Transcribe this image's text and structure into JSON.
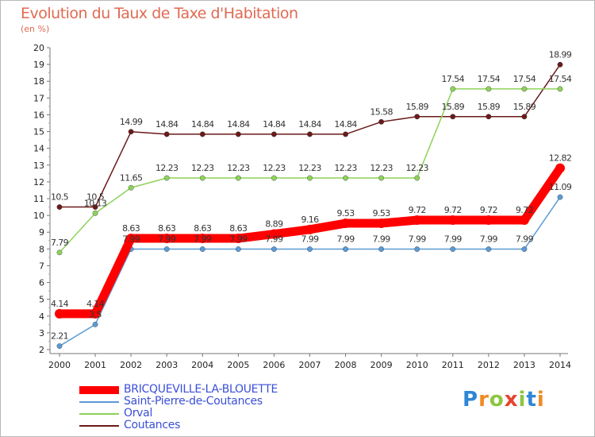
{
  "title": "Evolution du Taux de Taxe d'Habitation",
  "subtitle": "(en %)",
  "logo": {
    "text": "Proxiti",
    "letters": [
      {
        "ch": "P",
        "color": "#2e86d6"
      },
      {
        "ch": "r",
        "color": "#f08a24"
      },
      {
        "ch": "o",
        "color": "#8cc63f"
      },
      {
        "ch": "x",
        "color": "#e8432d"
      },
      {
        "ch": "i",
        "color": "#8cc63f"
      },
      {
        "ch": "t",
        "color": "#2e86d6"
      },
      {
        "ch": "i",
        "color": "#f08a24"
      }
    ]
  },
  "chart_data": {
    "type": "line",
    "title": "Evolution du Taux de Taxe d'Habitation",
    "subtitle": "(en %)",
    "xlabel": "",
    "ylabel": "(en %)",
    "x": [
      "2000",
      "2001",
      "2002",
      "2003",
      "2004",
      "2005",
      "2006",
      "2007",
      "2008",
      "2009",
      "2010",
      "2011",
      "2012",
      "2013",
      "2014"
    ],
    "ylim": [
      2,
      20
    ],
    "yticks": [
      2,
      3,
      4,
      5,
      6,
      7,
      8,
      9,
      10,
      11,
      12,
      13,
      14,
      15,
      16,
      17,
      18,
      19,
      20
    ],
    "grid": false,
    "legend": "bottom-left",
    "series": [
      {
        "name": "BRICQUEVILLE-LA-BLOUETTE",
        "color": "#ff0000",
        "values": [
          4.14,
          4.14,
          8.63,
          8.63,
          8.63,
          8.63,
          8.89,
          9.16,
          9.53,
          9.53,
          9.72,
          9.72,
          9.72,
          9.72,
          12.82
        ],
        "labels": [
          "4.14",
          "4.14",
          "8.63",
          "8.63",
          "8.63",
          "8.63",
          "8.89",
          "9.16",
          "9.53",
          "9.53",
          "9.72",
          "9.72",
          "9.72",
          "9.72",
          "12.82"
        ]
      },
      {
        "name": "Saint-Pierre-de-Coutances",
        "color": "#5b9bd5",
        "values": [
          2.21,
          3.5,
          7.99,
          7.99,
          7.99,
          7.99,
          7.99,
          7.99,
          7.99,
          7.99,
          7.99,
          7.99,
          7.99,
          7.99,
          11.09
        ],
        "labels": [
          "2.21",
          "3.5",
          "7.99",
          "7.99",
          "7.99",
          "7.99",
          "7.99",
          "7.99",
          "7.99",
          "7.99",
          "7.99",
          "7.99",
          "7.99",
          "7.99",
          "11.09"
        ]
      },
      {
        "name": "Orval",
        "color": "#8ed25a",
        "values": [
          7.79,
          10.13,
          11.65,
          12.23,
          12.23,
          12.23,
          12.23,
          12.23,
          12.23,
          12.23,
          12.23,
          17.54,
          17.54,
          17.54,
          17.54
        ],
        "labels": [
          "7.79",
          "10.13",
          "11.65",
          "12.23",
          "12.23",
          "12.23",
          "12.23",
          "12.23",
          "12.23",
          "12.23",
          "12.23",
          "17.54",
          "17.54",
          "17.54",
          "17.54"
        ]
      },
      {
        "name": "Coutances",
        "color": "#6b1a1a",
        "values": [
          10.5,
          10.5,
          14.99,
          14.84,
          14.84,
          14.84,
          14.84,
          14.84,
          14.84,
          15.58,
          15.89,
          15.89,
          15.89,
          15.89,
          18.99
        ],
        "labels": [
          "10.5",
          "10.5",
          "14.99",
          "14.84",
          "14.84",
          "14.84",
          "14.84",
          "14.84",
          "14.84",
          "15.58",
          "15.89",
          "15.89",
          "15.89",
          "15.89",
          "18.99"
        ]
      }
    ]
  }
}
